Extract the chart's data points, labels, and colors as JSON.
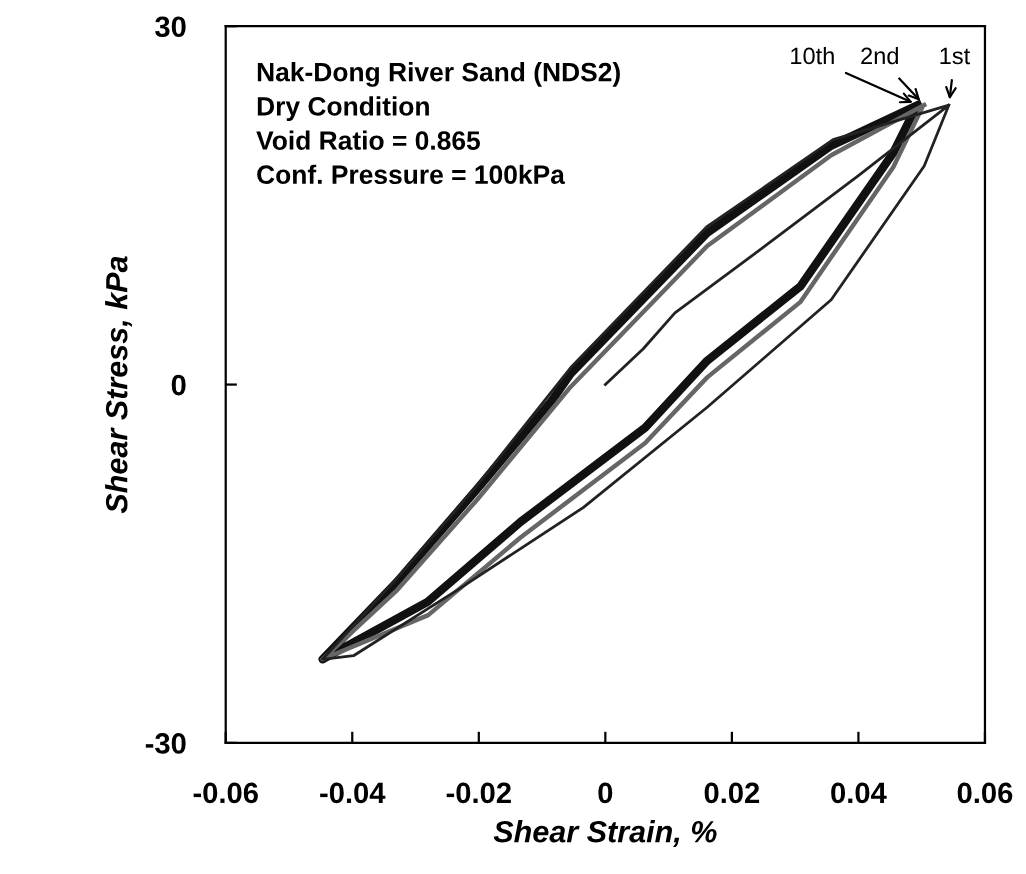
{
  "chart_data": {
    "type": "line",
    "xlabel": "Shear Strain, %",
    "ylabel": "Shear Stress, kPa",
    "xlim": [
      -0.06,
      0.06
    ],
    "xticks": [
      -0.06,
      -0.04,
      -0.02,
      0,
      0.02,
      0.04,
      0.06
    ],
    "ylim": [
      -30,
      30
    ],
    "yticks": [
      -30,
      0,
      30
    ],
    "grid": false,
    "legend": false,
    "marker": "none",
    "line_style": "solid",
    "series": [
      {
        "color": "#222222",
        "x": [
          0,
          0.006,
          0.011,
          0.025,
          0.04,
          0.0543,
          0.036,
          0.016,
          -0.0055,
          -0.0202,
          -0.0329,
          -0.0447,
          -0.0398,
          -0.0231,
          -0.0035,
          0.0161,
          0.0357,
          0.0504,
          0.0543
        ],
        "values": [
          0,
          3,
          6,
          11.5,
          17.5,
          23.4,
          20.5,
          13.2,
          1.4,
          -8.4,
          -16.2,
          -23.0,
          -22.7,
          -17.1,
          -10.3,
          -1.9,
          7.1,
          18.3,
          23.4
        ]
      },
      {
        "color": "#666666",
        "x": [
          0.0504,
          0.0357,
          0.0161,
          -0.0055,
          -0.0202,
          -0.0329,
          -0.0447,
          -0.028,
          -0.0134,
          0.0063,
          0.0161,
          0.0308,
          0.0455,
          0.05
        ],
        "values": [
          23.4,
          19.2,
          11.6,
          -0.2,
          -9.6,
          -17.2,
          -23.0,
          -19.3,
          -12.8,
          -4.9,
          0.6,
          6.9,
          18.2,
          23.1
        ]
      },
      {
        "color": "#111111",
        "x": [
          0.0494,
          0.0357,
          0.0161,
          -0.0055,
          -0.0084,
          -0.0202,
          -0.0329,
          -0.0447,
          -0.0281,
          -0.0134,
          0.0063,
          0.0161,
          0.0308,
          0.0455,
          0.049
        ],
        "values": [
          23.4,
          20.0,
          12.7,
          0.9,
          -1.3,
          -8.7,
          -16.5,
          -23.0,
          -18.2,
          -11.5,
          -3.6,
          2.0,
          8.2,
          19.4,
          23.1
        ]
      }
    ],
    "annotations": [
      "Nak-Dong River Sand (NDS2)\nDry Condition\nVoid Ratio = 0.865\nConf. Pressure = 100kPa",
      {
        "text": "10th",
        "x": 0.0494,
        "y": 23.4
      },
      {
        "text": "2nd",
        "x": 0.0504,
        "y": 23.4
      },
      {
        "text": "1st",
        "x": 0.0543,
        "y": 23.4
      }
    ]
  }
}
